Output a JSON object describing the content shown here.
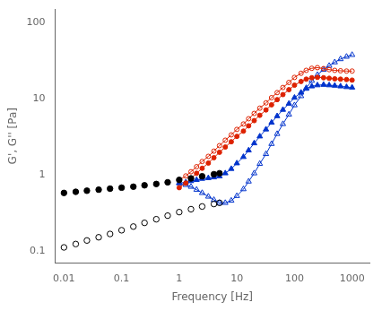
{
  "chart_data": {
    "type": "line",
    "x_label": "Frequency [Hz]",
    "y_label": "G', G'' [Pa]",
    "log": true,
    "grid": false,
    "xlim": [
      0.007,
      2000
    ],
    "ylim": [
      0.07,
      150
    ],
    "xticks": [
      0.01,
      0.1,
      1,
      10,
      100,
      1000
    ],
    "yticks": [
      0.1,
      1,
      10,
      100
    ],
    "series": [
      {
        "color": "#000000",
        "marker": "circle",
        "line_style": "none",
        "x": [
          0.01,
          0.016,
          0.025,
          0.04,
          0.063,
          0.1,
          0.16,
          0.25,
          0.4,
          0.63,
          1.0,
          1.6,
          2.5,
          4.0,
          5.0
        ],
        "values": [
          0.58,
          0.6,
          0.62,
          0.64,
          0.66,
          0.68,
          0.7,
          0.73,
          0.76,
          0.8,
          0.86,
          0.9,
          0.96,
          1.02,
          1.05
        ]
      },
      {
        "color": "#000000",
        "marker": "open_circle",
        "line_style": "none",
        "x": [
          0.01,
          0.016,
          0.025,
          0.04,
          0.063,
          0.1,
          0.16,
          0.25,
          0.4,
          0.63,
          1.0,
          1.6,
          2.5,
          4.0,
          5.0
        ],
        "values": [
          0.112,
          0.124,
          0.138,
          0.152,
          0.168,
          0.188,
          0.21,
          0.235,
          0.262,
          0.292,
          0.325,
          0.355,
          0.385,
          0.415,
          0.43
        ]
      },
      {
        "color": "#dd2200",
        "marker": "open_circle",
        "line_style": "solid",
        "x": [
          1.0,
          1.3,
          1.6,
          2.0,
          2.5,
          3.2,
          4.0,
          5.0,
          6.3,
          8.0,
          10,
          13,
          16,
          20,
          25,
          32,
          40,
          50,
          63,
          80,
          100,
          130,
          160,
          200,
          250,
          320,
          400,
          500,
          630,
          800,
          1000
        ],
        "values": [
          0.85,
          0.97,
          1.1,
          1.28,
          1.5,
          1.75,
          2.05,
          2.42,
          2.85,
          3.35,
          3.95,
          4.65,
          5.45,
          6.4,
          7.5,
          8.8,
          10.3,
          12.0,
          14.0,
          16.3,
          19.0,
          21.5,
          23.5,
          25.0,
          25.5,
          24.8,
          24.0,
          23.5,
          23.2,
          23.0,
          23.0
        ]
      },
      {
        "color": "#dd2200",
        "marker": "circle",
        "line_style": "solid",
        "x": [
          1.0,
          1.3,
          1.6,
          2.0,
          2.5,
          3.2,
          4.0,
          5.0,
          6.3,
          8.0,
          10,
          13,
          16,
          20,
          25,
          32,
          40,
          50,
          63,
          80,
          100,
          130,
          160,
          200,
          250,
          320,
          400,
          500,
          630,
          800,
          1000
        ],
        "values": [
          0.68,
          0.78,
          0.9,
          1.05,
          1.22,
          1.43,
          1.68,
          1.98,
          2.32,
          2.72,
          3.2,
          3.75,
          4.4,
          5.15,
          6.05,
          7.1,
          8.3,
          9.7,
          11.3,
          13.1,
          15.0,
          16.8,
          18.0,
          18.8,
          19.0,
          18.8,
          18.5,
          18.2,
          18.0,
          17.8,
          17.5
        ]
      },
      {
        "color": "#0033cc",
        "marker": "triangle",
        "line_style": "solid",
        "x": [
          1.0,
          1.3,
          1.6,
          2.0,
          2.5,
          3.2,
          4.0,
          5.0,
          6.3,
          8.0,
          10,
          13,
          16,
          20,
          25,
          32,
          40,
          50,
          63,
          80,
          100,
          130,
          160,
          200,
          250,
          320,
          400,
          500,
          630,
          800,
          1000
        ],
        "values": [
          0.78,
          0.8,
          0.83,
          0.86,
          0.89,
          0.91,
          0.93,
          0.96,
          1.05,
          1.2,
          1.42,
          1.72,
          2.1,
          2.6,
          3.2,
          3.95,
          4.85,
          5.9,
          7.15,
          8.6,
          10.3,
          12.0,
          13.5,
          14.5,
          15.0,
          15.2,
          15.0,
          14.8,
          14.5,
          14.2,
          14.0
        ]
      },
      {
        "color": "#0033cc",
        "marker": "open_triangle",
        "line_style": "solid",
        "x": [
          1.0,
          1.3,
          1.6,
          2.0,
          2.5,
          3.2,
          4.0,
          5.0,
          6.3,
          8.0,
          10,
          13,
          16,
          20,
          25,
          32,
          40,
          50,
          63,
          80,
          100,
          130,
          160,
          200,
          250,
          320,
          400,
          500,
          630,
          800,
          1000
        ],
        "values": [
          0.78,
          0.74,
          0.7,
          0.64,
          0.58,
          0.52,
          0.47,
          0.43,
          0.43,
          0.46,
          0.53,
          0.65,
          0.82,
          1.05,
          1.4,
          1.88,
          2.55,
          3.45,
          4.65,
          6.2,
          8.2,
          10.8,
          13.8,
          17.2,
          20.5,
          24.0,
          27.0,
          30.0,
          33.0,
          35.5,
          37.5
        ]
      }
    ]
  }
}
